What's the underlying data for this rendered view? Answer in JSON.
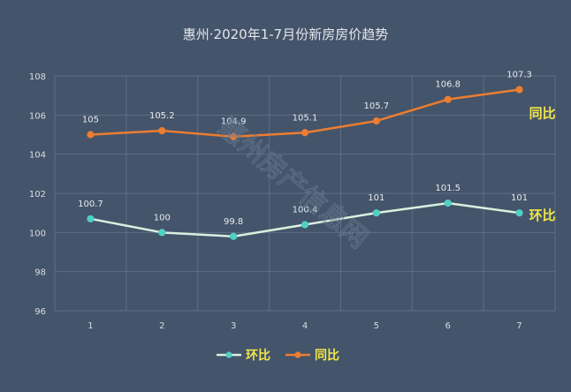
{
  "chart_data": {
    "type": "line",
    "title": "惠州·2020年1-7月份新房房价趋势",
    "categories": [
      "1",
      "2",
      "3",
      "4",
      "5",
      "6",
      "7"
    ],
    "ylim": [
      96,
      108
    ],
    "yticks": [
      "96",
      "98",
      "100",
      "102",
      "104",
      "106",
      "108"
    ],
    "grid": true,
    "legend_position": "bottom",
    "series": [
      {
        "name": "环比",
        "values": [
          100.7,
          100,
          99.8,
          100.4,
          101,
          101.5,
          101
        ],
        "labels": [
          "100.7",
          "100",
          "99.8",
          "100.4",
          "101",
          "101.5",
          "101"
        ],
        "color": "#d9f0e0",
        "marker_color": "#4fd1c5"
      },
      {
        "name": "同比",
        "values": [
          105,
          105.2,
          104.9,
          105.1,
          105.7,
          106.8,
          107.3
        ],
        "labels": [
          "105",
          "105.2",
          "104.9",
          "105.1",
          "105.7",
          "106.8",
          "107.3"
        ],
        "color": "#ed7d31",
        "marker_color": "#ed7d31"
      }
    ],
    "watermark": "惠州房产信息网"
  }
}
